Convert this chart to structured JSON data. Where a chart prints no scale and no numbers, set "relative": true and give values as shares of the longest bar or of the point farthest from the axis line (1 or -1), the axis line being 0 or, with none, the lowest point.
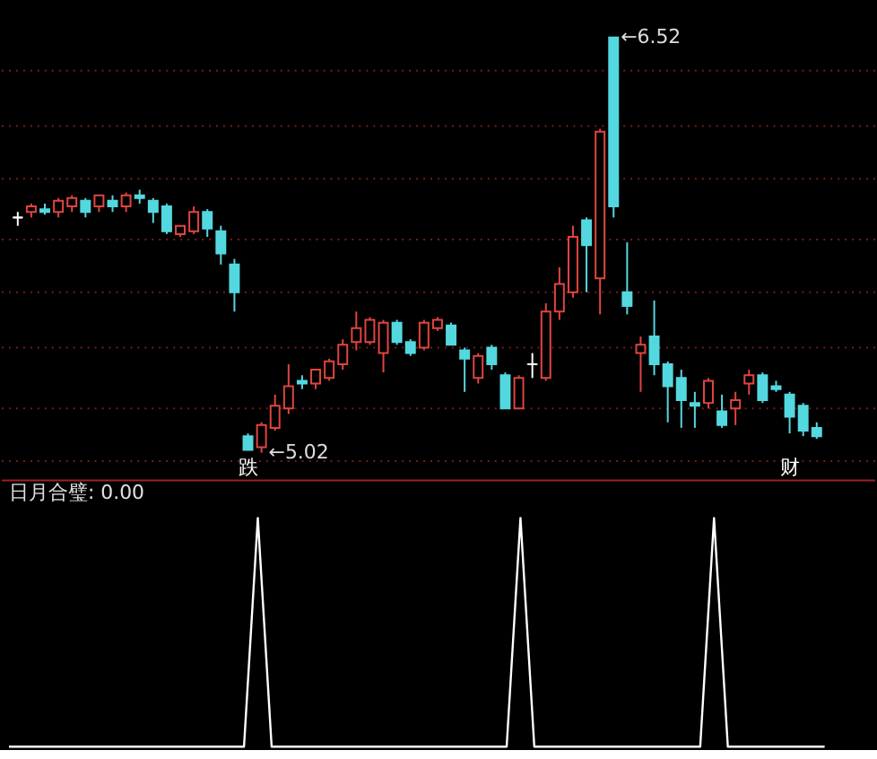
{
  "chart_data": [
    {
      "type": "candlestick",
      "categories": [
        null,
        null,
        null,
        null,
        null,
        null,
        null,
        null,
        null,
        null,
        null,
        null,
        null,
        null,
        null,
        null,
        null,
        null,
        null,
        null,
        null,
        null,
        null,
        null,
        null,
        null,
        null,
        null,
        null,
        null,
        null,
        null,
        null,
        null,
        null,
        null,
        null,
        null,
        null,
        null,
        null,
        null,
        null,
        null,
        null,
        null,
        null,
        null,
        null,
        null,
        null,
        null,
        null,
        null,
        null,
        null,
        null,
        null,
        null,
        null
      ],
      "ohlc": [
        [
          5.87,
          5.89,
          5.84,
          5.87
        ],
        [
          5.89,
          5.92,
          5.87,
          5.91
        ],
        [
          5.9,
          5.92,
          5.88,
          5.89
        ],
        [
          5.89,
          5.94,
          5.87,
          5.93
        ],
        [
          5.91,
          5.95,
          5.89,
          5.94
        ],
        [
          5.93,
          5.94,
          5.87,
          5.89
        ],
        [
          5.91,
          5.95,
          5.89,
          5.95
        ],
        [
          5.93,
          5.95,
          5.89,
          5.91
        ],
        [
          5.91,
          5.96,
          5.89,
          5.95
        ],
        [
          5.95,
          5.97,
          5.92,
          5.94
        ],
        [
          5.93,
          5.94,
          5.85,
          5.89
        ],
        [
          5.91,
          5.92,
          5.81,
          5.82
        ],
        [
          5.81,
          5.84,
          5.8,
          5.84
        ],
        [
          5.82,
          5.91,
          5.81,
          5.89
        ],
        [
          5.89,
          5.9,
          5.8,
          5.83
        ],
        [
          5.82,
          5.84,
          5.7,
          5.74
        ],
        [
          5.7,
          5.72,
          5.53,
          5.6
        ],
        [
          5.08,
          5.09,
          5.03,
          5.03
        ],
        [
          5.04,
          5.13,
          5.02,
          5.12
        ],
        [
          5.11,
          5.23,
          5.1,
          5.19
        ],
        [
          5.18,
          5.34,
          5.16,
          5.26
        ],
        [
          5.28,
          5.3,
          5.25,
          5.27
        ],
        [
          5.27,
          5.32,
          5.25,
          5.32
        ],
        [
          5.29,
          5.36,
          5.28,
          5.35
        ],
        [
          5.34,
          5.43,
          5.32,
          5.41
        ],
        [
          5.42,
          5.53,
          5.39,
          5.47
        ],
        [
          5.42,
          5.51,
          5.41,
          5.5
        ],
        [
          5.38,
          5.5,
          5.31,
          5.49
        ],
        [
          5.49,
          5.5,
          5.41,
          5.42
        ],
        [
          5.42,
          5.43,
          5.37,
          5.38
        ],
        [
          5.4,
          5.5,
          5.39,
          5.49
        ],
        [
          5.47,
          5.51,
          5.46,
          5.5
        ],
        [
          5.48,
          5.49,
          5.41,
          5.41
        ],
        [
          5.39,
          5.4,
          5.24,
          5.36
        ],
        [
          5.29,
          5.38,
          5.27,
          5.37
        ],
        [
          5.4,
          5.41,
          5.32,
          5.34
        ],
        [
          5.3,
          5.31,
          5.18,
          5.18
        ],
        [
          5.18,
          5.3,
          5.18,
          5.29
        ],
        [
          5.34,
          5.38,
          5.29,
          5.34
        ],
        [
          5.29,
          5.56,
          5.28,
          5.53
        ],
        [
          5.53,
          5.69,
          5.5,
          5.63
        ],
        [
          5.6,
          5.84,
          5.58,
          5.8
        ],
        [
          5.86,
          5.87,
          5.6,
          5.77
        ],
        [
          5.65,
          6.19,
          5.52,
          6.18
        ],
        [
          6.52,
          6.52,
          5.87,
          5.91
        ],
        [
          5.6,
          5.78,
          5.52,
          5.55
        ],
        [
          5.38,
          5.44,
          5.24,
          5.41
        ],
        [
          5.44,
          5.57,
          5.3,
          5.34
        ],
        [
          5.34,
          5.35,
          5.13,
          5.26
        ],
        [
          5.29,
          5.32,
          5.11,
          5.21
        ],
        [
          5.2,
          5.24,
          5.11,
          5.19
        ],
        [
          5.2,
          5.29,
          5.18,
          5.28
        ],
        [
          5.17,
          5.23,
          5.11,
          5.12
        ],
        [
          5.18,
          5.24,
          5.12,
          5.21
        ],
        [
          5.27,
          5.32,
          5.23,
          5.3
        ],
        [
          5.3,
          5.31,
          5.2,
          5.21
        ],
        [
          5.26,
          5.28,
          5.24,
          5.25
        ],
        [
          5.23,
          5.24,
          5.09,
          5.15
        ],
        [
          5.19,
          5.2,
          5.08,
          5.1
        ],
        [
          5.11,
          5.13,
          5.07,
          5.08
        ]
      ],
      "colors": [
        "#ffffff",
        "#e0453f",
        "#54d8e0",
        "#e0453f",
        "#e0453f",
        "#54d8e0",
        "#e0453f",
        "#54d8e0",
        "#e0453f",
        "#54d8e0",
        "#54d8e0",
        "#54d8e0",
        "#e0453f",
        "#e0453f",
        "#54d8e0",
        "#54d8e0",
        "#54d8e0",
        "#54d8e0",
        "#e0453f",
        "#e0453f",
        "#e0453f",
        "#54d8e0",
        "#e0453f",
        "#e0453f",
        "#e0453f",
        "#e0453f",
        "#e0453f",
        "#e0453f",
        "#54d8e0",
        "#54d8e0",
        "#e0453f",
        "#e0453f",
        "#54d8e0",
        "#54d8e0",
        "#e0453f",
        "#54d8e0",
        "#54d8e0",
        "#e0453f",
        "#ffffff",
        "#e0453f",
        "#e0453f",
        "#e0453f",
        "#54d8e0",
        "#e0453f",
        "#54d8e0",
        "#54d8e0",
        "#e0453f",
        "#54d8e0",
        "#54d8e0",
        "#54d8e0",
        "#54d8e0",
        "#e0453f",
        "#54d8e0",
        "#e0453f",
        "#e0453f",
        "#54d8e0",
        "#54d8e0",
        "#54d8e0",
        "#54d8e0",
        "#54d8e0"
      ],
      "ylim": [
        4.92,
        6.65
      ],
      "yticks": [
        {
          "value": 6.4,
          "label": null
        },
        {
          "value": 6.2,
          "label": null
        },
        {
          "value": 6.01,
          "label": null
        },
        {
          "value": 5.79,
          "label": null
        },
        {
          "value": 5.6,
          "label": null
        },
        {
          "value": 5.4,
          "label": null
        },
        {
          "value": 5.18,
          "label": null
        },
        {
          "value": 4.99,
          "label": null
        }
      ],
      "grid": "y",
      "tick_labels": false,
      "annotations": [
        "←6.52",
        "←5.02",
        {
          "text": "跌",
          "y": 5.03
        },
        {
          "text": "财",
          "y": 5.09
        }
      ]
    },
    {
      "type": "line",
      "title": "日月合璧: 0.00",
      "relative": true,
      "categories": [
        null,
        null,
        null,
        null,
        null,
        null,
        null,
        null,
        null,
        null,
        null,
        null,
        null,
        null,
        null,
        null,
        null,
        null,
        null,
        null,
        null,
        null,
        null,
        null,
        null,
        null,
        null,
        null,
        null,
        null,
        null,
        null,
        null,
        null,
        null,
        null,
        null,
        null,
        null,
        null,
        null,
        null,
        null,
        null,
        null,
        null,
        null,
        null,
        null,
        null,
        null,
        null,
        null,
        null,
        null,
        null,
        null,
        null,
        null,
        null
      ],
      "series": [
        {
          "color": "#ffffff",
          "values": [
            0,
            0,
            0,
            0,
            0,
            0,
            0,
            0,
            0,
            0,
            0,
            0,
            0,
            0,
            0,
            0,
            0,
            0,
            1,
            0,
            0,
            0,
            0,
            0,
            0,
            0,
            0,
            0,
            0,
            0,
            0,
            0,
            0,
            0,
            0,
            0,
            0,
            1,
            0,
            0,
            0,
            0,
            0,
            0,
            0,
            0,
            0,
            0,
            0,
            0,
            0,
            1,
            0,
            0,
            0,
            0,
            0,
            0,
            0,
            0
          ]
        }
      ]
    }
  ]
}
